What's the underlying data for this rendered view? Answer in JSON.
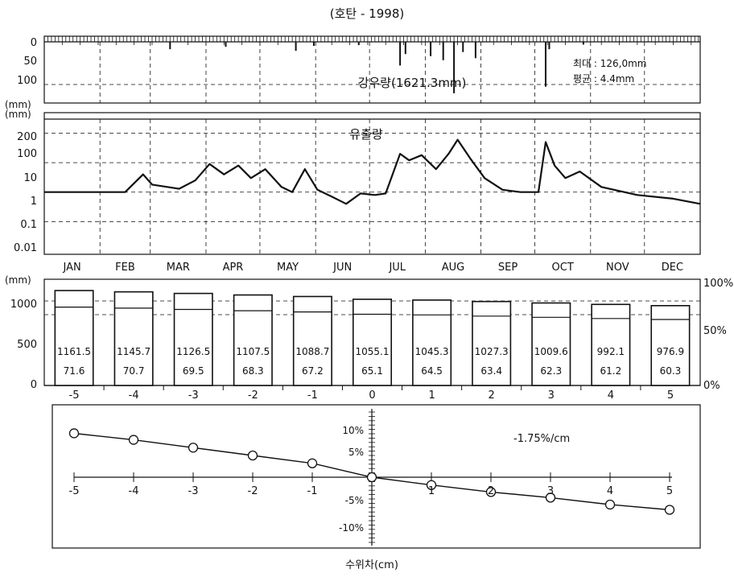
{
  "title": "(호탄 - 1998)",
  "chart_data": [
    {
      "type": "bar",
      "panel": "rainfall",
      "title": "강우량(1621.3mm)",
      "ylabel": "(mm)",
      "yticks": [
        "0",
        "50",
        "100"
      ],
      "ylim": [
        0,
        150
      ],
      "inverted": true,
      "stats": {
        "max": "최대 : 126,0mm",
        "mean": "평균 : 4.4mm"
      },
      "events": [
        {
          "day": 70,
          "mm": 18
        },
        {
          "day": 101,
          "mm": 12
        },
        {
          "day": 140,
          "mm": 22
        },
        {
          "day": 150,
          "mm": 10
        },
        {
          "day": 175,
          "mm": 8
        },
        {
          "day": 198,
          "mm": 58
        },
        {
          "day": 201,
          "mm": 30
        },
        {
          "day": 215,
          "mm": 35
        },
        {
          "day": 222,
          "mm": 45
        },
        {
          "day": 228,
          "mm": 126
        },
        {
          "day": 233,
          "mm": 25
        },
        {
          "day": 240,
          "mm": 40
        },
        {
          "day": 279,
          "mm": 110
        },
        {
          "day": 281,
          "mm": 18
        },
        {
          "day": 300,
          "mm": 6
        }
      ]
    },
    {
      "type": "line",
      "panel": "runoff",
      "title": "유출량",
      "ylabel": "(mm)",
      "yscale": "log",
      "yticks": [
        "200",
        "100",
        "10",
        "1",
        "0.1",
        "0.01"
      ],
      "months": [
        "JAN",
        "FEB",
        "MAR",
        "APR",
        "MAY",
        "JUN",
        "JUL",
        "AUG",
        "SEP",
        "OCT",
        "NOV",
        "DEC"
      ],
      "x_days": [
        0,
        30,
        45,
        55,
        60,
        75,
        84,
        92,
        100,
        108,
        115,
        123,
        132,
        138,
        145,
        152,
        160,
        168,
        176,
        184,
        190,
        198,
        203,
        210,
        218,
        225,
        230,
        237,
        245,
        255,
        265,
        275,
        279,
        284,
        290,
        298,
        310,
        330,
        350,
        365
      ],
      "y": [
        1,
        1,
        1,
        4,
        1.8,
        1.3,
        2.5,
        9,
        4,
        8,
        3,
        6,
        1.5,
        1,
        6,
        1.2,
        0.7,
        0.4,
        0.9,
        0.8,
        0.9,
        20,
        12,
        18,
        6,
        20,
        60,
        14,
        3,
        1.2,
        1,
        1,
        50,
        8,
        3,
        5,
        1.5,
        0.8,
        0.6,
        0.4
      ]
    },
    {
      "type": "bar",
      "panel": "storage",
      "ylabel": "(mm)",
      "yticks_left": [
        "1000",
        "500",
        "0"
      ],
      "yticks_right": [
        "100%",
        "50%",
        "0%"
      ],
      "ylim": [
        0,
        1300
      ],
      "categories": [
        "-5",
        "-4",
        "-3",
        "-2",
        "-1",
        "0",
        "1",
        "2",
        "3",
        "4",
        "5"
      ],
      "values": [
        1161.5,
        1145.7,
        1126.5,
        1107.5,
        1088.7,
        1055.1,
        1045.3,
        1027.3,
        1009.6,
        992.1,
        976.9
      ],
      "value_labels": [
        "1161.5",
        "1145.7",
        "1126.5",
        "1107.5",
        "1088.7",
        "1055.1",
        "1045.3",
        "1027.3",
        "1009.6",
        "992.1",
        "976.9"
      ],
      "percent": [
        71.6,
        70.7,
        69.5,
        68.3,
        67.2,
        65.1,
        64.5,
        63.4,
        62.3,
        61.2,
        60.3
      ],
      "percent_labels": [
        "71.6",
        "70.7",
        "69.5",
        "68.3",
        "67.2",
        "65.1",
        "64.5",
        "63.4",
        "62.3",
        "61.2",
        "60.3"
      ]
    },
    {
      "type": "line",
      "panel": "sensitivity",
      "xlabel": "수위차(cm)",
      "xticks": [
        "-5",
        "-4",
        "-3",
        "-2",
        "-1",
        "1",
        "2",
        "3",
        "4",
        "5"
      ],
      "yticks": [
        "10%",
        "5%",
        "-5%",
        "-10%"
      ],
      "slope_label": "-1.75%/cm",
      "x": [
        -5,
        -4,
        -3,
        -2,
        -1,
        0,
        1,
        2,
        3,
        4,
        5
      ],
      "y": [
        10.1,
        8.6,
        6.8,
        5.0,
        3.2,
        0,
        -1.8,
        -3.4,
        -4.7,
        -6.3,
        -7.5
      ]
    }
  ]
}
